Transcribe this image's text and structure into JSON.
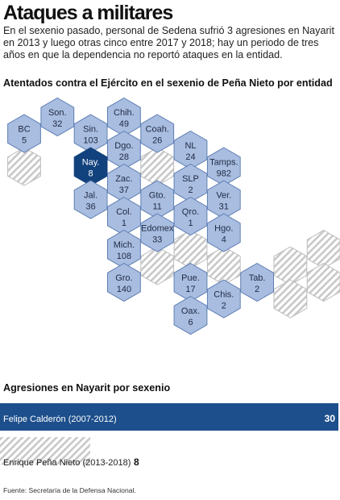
{
  "title": "Ataques a militares",
  "intro": "En el sexenio pasado, personal de Sedena sufrió 3 agresiones en Nayarit en 2013 y luego otras cinco entre 2017 y 2018; hay un periodo de tres años en que la dependencia no reportó ataques en la entidad.",
  "map_heading": "Atentados contra el Ejército en el sexenio de Peña Nieto por entidad",
  "bars_heading": "Agresiones en Nayarit por sexenio",
  "source": "Fuente: Secretaría de la Defensa Nacional.",
  "colors": {
    "hex_fill": "#a9bde0",
    "hex_stroke": "#5f7fb4",
    "highlight": "#12427d",
    "nodata_stripe": "#c8c8c8",
    "bar_blue": "#1d4f8c"
  },
  "chart_data": [
    {
      "type": "table",
      "title": "Atentados contra el Ejército en el sexenio de Peña Nieto por entidad",
      "highlight": "Nay.",
      "cells": [
        {
          "state": "BC",
          "value": "5",
          "row": 1,
          "col": 0
        },
        {
          "state": "Son.",
          "value": "32",
          "row": 0,
          "col": 1
        },
        {
          "state": "Sin.",
          "value": "103",
          "row": 1,
          "col": 2
        },
        {
          "state": "Chih.",
          "value": "49",
          "row": 0,
          "col": 3
        },
        {
          "state": "Coah.",
          "value": "26",
          "row": 1,
          "col": 4
        },
        {
          "state": "Dgo.",
          "value": "28",
          "row": 2,
          "col": 3
        },
        {
          "state": "Nay.",
          "value": "8",
          "row": 3,
          "col": 2
        },
        {
          "state": "NL",
          "value": "24",
          "row": 2,
          "col": 5
        },
        {
          "state": "Tamps.",
          "value": "982",
          "row": 3,
          "col": 6
        },
        {
          "state": "Zac.",
          "value": "37",
          "row": 4,
          "col": 3
        },
        {
          "state": "SLP",
          "value": "2",
          "row": 4,
          "col": 5
        },
        {
          "state": "Jal.",
          "value": "36",
          "row": 5,
          "col": 2
        },
        {
          "state": "Gto.",
          "value": "11",
          "row": 5,
          "col": 4
        },
        {
          "state": "Ver.",
          "value": "31",
          "row": 5,
          "col": 6
        },
        {
          "state": "Col.",
          "value": "1",
          "row": 6,
          "col": 3
        },
        {
          "state": "Qro.",
          "value": "1",
          "row": 6,
          "col": 5
        },
        {
          "state": "Edomex",
          "value": "33",
          "row": 7,
          "col": 4
        },
        {
          "state": "Hgo.",
          "value": "4",
          "row": 7,
          "col": 6
        },
        {
          "state": "Mich.",
          "value": "108",
          "row": 8,
          "col": 3
        },
        {
          "state": "Gro.",
          "value": "140",
          "row": 10,
          "col": 3
        },
        {
          "state": "Pue.",
          "value": "17",
          "row": 10,
          "col": 5
        },
        {
          "state": "Tab.",
          "value": "2",
          "row": 10,
          "col": 7
        },
        {
          "state": "Chis.",
          "value": "2",
          "row": 11,
          "col": 6
        },
        {
          "state": "Oax.",
          "value": "6",
          "row": 12,
          "col": 5
        }
      ],
      "no_data_cells": [
        {
          "row": 3,
          "col": 0
        },
        {
          "row": 3,
          "col": 4
        },
        {
          "row": 8,
          "col": 5
        },
        {
          "row": 9,
          "col": 4
        },
        {
          "row": 9,
          "col": 6
        },
        {
          "row": 8,
          "col": 9
        },
        {
          "row": 9,
          "col": 8
        },
        {
          "row": 10,
          "col": 9
        },
        {
          "row": 11,
          "col": 8
        }
      ]
    },
    {
      "type": "bar",
      "title": "Agresiones en Nayarit por sexenio",
      "orientation": "horizontal",
      "xlim": [
        0,
        30
      ],
      "bars": [
        {
          "name": "Felipe Calderón",
          "period": "(2007-2012)",
          "value": 30,
          "value_label": "30"
        },
        {
          "name": "Enrique Peña Nieto",
          "period": "(2013-2018)",
          "value": 8,
          "value_label": "8"
        }
      ]
    }
  ]
}
